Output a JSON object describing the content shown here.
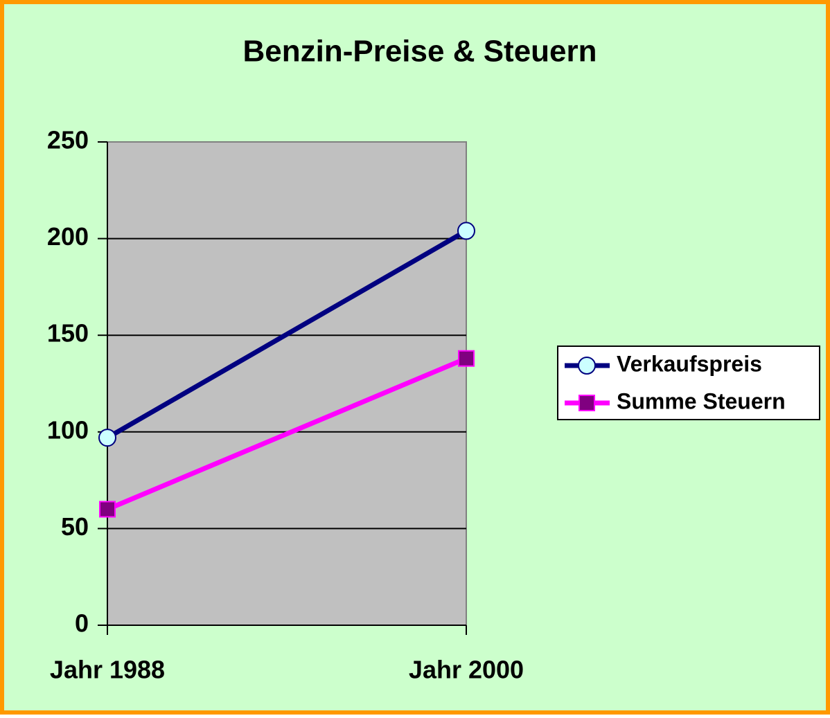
{
  "chart_data": {
    "type": "line",
    "title": "Benzin-Preise & Steuern",
    "categories": [
      "Jahr 1988",
      "Jahr 2000"
    ],
    "series": [
      {
        "name": "Verkaufspreis",
        "color": "#000080",
        "values": [
          97,
          204
        ]
      },
      {
        "name": "Summe Steuern",
        "color": "#ff00ff",
        "values": [
          60,
          138
        ]
      }
    ],
    "ylim": [
      0,
      250
    ],
    "yticks": [
      0,
      50,
      100,
      150,
      200,
      250
    ],
    "grid": true,
    "legend": "right"
  }
}
